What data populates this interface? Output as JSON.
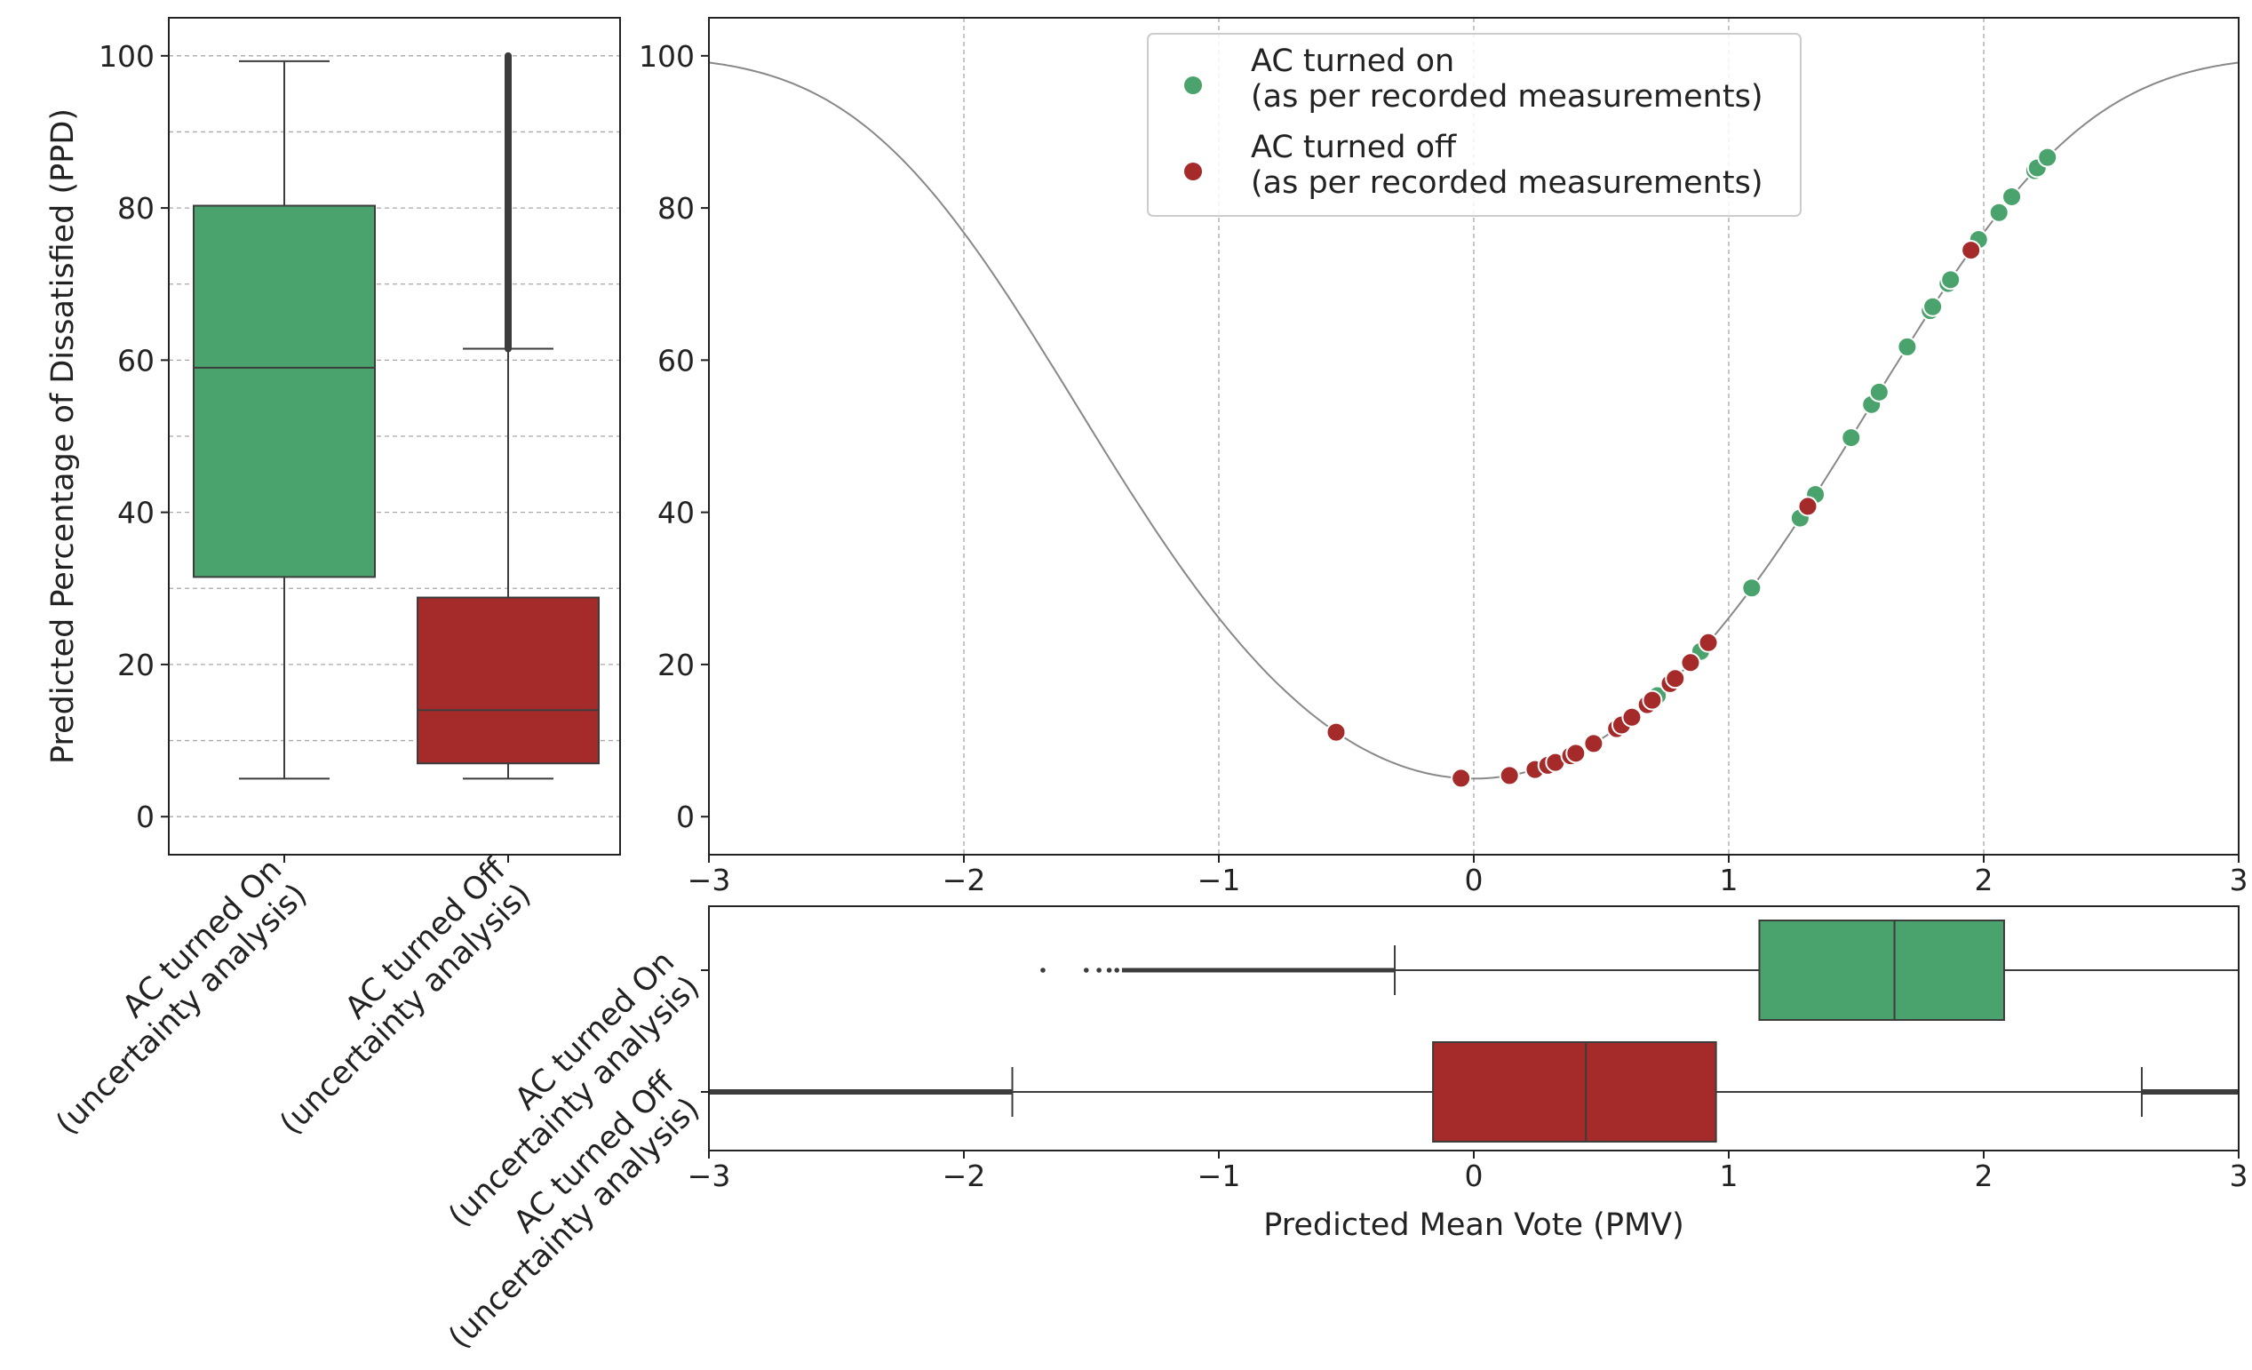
{
  "figure": {
    "colors": {
      "on": "#4aa36c",
      "off": "#a52a2a",
      "line": "#888888",
      "grid": "#a8a8a8",
      "frame": "#222222",
      "box_edge": "#3c3c3c"
    }
  },
  "chart_data": [
    {
      "id": "ppd-boxplot",
      "type": "box",
      "ylabel": "Predicted Percentage of Dissatisfied (PPD)",
      "ylim": [
        -5,
        105
      ],
      "yticks": [
        0,
        20,
        40,
        60,
        80,
        100
      ],
      "ytick_labels": [
        "0",
        "20",
        "40",
        "60",
        "80",
        "100"
      ],
      "grid": "horizontal dashed, major and minor",
      "categories": [
        "AC turned On\n(uncertainty analysis)",
        "AC turned Off\n(uncertainty analysis)"
      ],
      "series": [
        {
          "name": "AC turned On (uncertainty analysis)",
          "color_key": "on",
          "whisker_low": 5,
          "q1": 31.5,
          "median": 59,
          "q3": 80.3,
          "whisker_high": 99.3,
          "outliers_range": []
        },
        {
          "name": "AC turned Off (uncertainty analysis)",
          "color_key": "off",
          "whisker_low": 5,
          "q1": 7,
          "median": 14,
          "q3": 28.8,
          "whisker_high": 61.5,
          "outliers_range": [
            61.5,
            100
          ]
        }
      ]
    },
    {
      "id": "pmv-ppd-scatter",
      "type": "scatter",
      "xlabel": "",
      "ylabel": "",
      "xlim": [
        -3,
        3
      ],
      "ylim": [
        -5,
        105
      ],
      "xticks": [
        -3,
        -2,
        -1,
        0,
        1,
        2,
        3
      ],
      "xtick_labels": [
        "−3",
        "−2",
        "−1",
        "0",
        "1",
        "2",
        "3"
      ],
      "yticks": [
        0,
        20,
        40,
        60,
        80,
        100
      ],
      "ytick_labels": [
        "0",
        "20",
        "40",
        "60",
        "80",
        "100"
      ],
      "grid": "dashed",
      "curve": "PPD = 100 - 95*exp(-0.03353*PMV^4 - 0.2179*PMV^2)",
      "legend": {
        "location": "top-center",
        "entries": [
          {
            "color_key": "on",
            "line1": "AC turned on",
            "line2": "(as per recorded measurements)"
          },
          {
            "color_key": "off",
            "line1": "AC turned off",
            "line2": "(as per recorded measurements)"
          }
        ]
      },
      "series": [
        {
          "name": "AC turned on (as per recorded measurements)",
          "color_key": "on",
          "x": [
            0.72,
            0.89,
            1.09,
            1.28,
            1.34,
            1.48,
            1.56,
            1.59,
            1.7,
            1.79,
            1.8,
            1.86,
            1.87,
            1.98,
            2.06,
            2.11,
            2.2,
            2.21,
            2.25
          ]
        },
        {
          "name": "AC turned off (as per recorded measurements)",
          "color_key": "off",
          "x": [
            -0.54,
            -0.05,
            0.14,
            0.24,
            0.29,
            0.32,
            0.38,
            0.4,
            0.47,
            0.56,
            0.58,
            0.62,
            0.68,
            0.7,
            0.77,
            0.79,
            0.85,
            0.92,
            1.31,
            1.95
          ]
        }
      ]
    },
    {
      "id": "pmv-boxplot",
      "type": "box",
      "orientation": "horizontal",
      "xlabel": "Predicted Mean Vote (PMV)",
      "xlim": [
        -3,
        3
      ],
      "xticks": [
        -3,
        -2,
        -1,
        0,
        1,
        2,
        3
      ],
      "xtick_labels": [
        "−3",
        "−2",
        "−1",
        "0",
        "1",
        "2",
        "3"
      ],
      "categories": [
        "AC turned On\n(uncertainty analysis)",
        "AC turned Off\n(uncertainty analysis)"
      ],
      "series": [
        {
          "name": "AC turned On (uncertainty analysis)",
          "color_key": "on",
          "whisker_low": -0.31,
          "q1": 1.12,
          "median": 1.65,
          "q3": 2.08,
          "whisker_high": 3.1,
          "outliers_range": [
            -1.69,
            -0.31
          ]
        },
        {
          "name": "AC turned Off (uncertainty analysis)",
          "color_key": "off",
          "whisker_low": -1.81,
          "q1": -0.16,
          "median": 0.44,
          "q3": 0.95,
          "whisker_high": 2.62,
          "outliers_range": [
            -3.1,
            -1.81
          ],
          "outliers_high_range": [
            2.62,
            3.1
          ]
        }
      ]
    }
  ]
}
